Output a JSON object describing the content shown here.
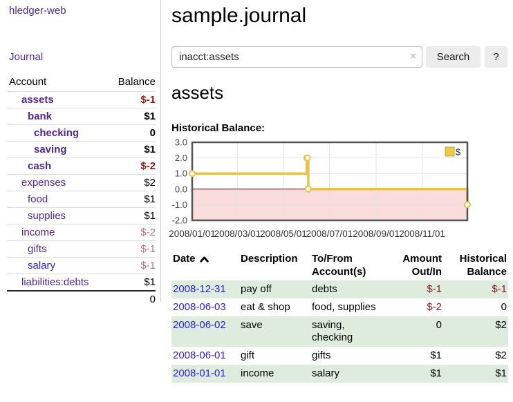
{
  "app": {
    "title": "hledger-web",
    "journal_link": "Journal"
  },
  "sidebar": {
    "columns": {
      "account": "Account",
      "balance": "Balance"
    },
    "rows": [
      {
        "name": "assets",
        "balance": "$-1",
        "depth": 1,
        "bold": true,
        "negative": true,
        "blue": false
      },
      {
        "name": "bank",
        "balance": "$1",
        "depth": 2,
        "bold": true,
        "negative": false,
        "blue": false
      },
      {
        "name": "checking",
        "balance": "0",
        "depth": 3,
        "bold": true,
        "negative": false,
        "blue": false
      },
      {
        "name": "saving",
        "balance": "$1",
        "depth": 3,
        "bold": true,
        "negative": false,
        "blue": false
      },
      {
        "name": "cash",
        "balance": "$-2",
        "depth": 2,
        "bold": true,
        "negative": true,
        "blue": false
      },
      {
        "name": "expenses",
        "balance": "$2",
        "depth": 1,
        "bold": false,
        "negative": false,
        "blue": false
      },
      {
        "name": "food",
        "balance": "$1",
        "depth": 2,
        "bold": false,
        "negative": false,
        "blue": false
      },
      {
        "name": "supplies",
        "balance": "$1",
        "depth": 2,
        "bold": false,
        "negative": false,
        "blue": false
      },
      {
        "name": "income",
        "balance": "$-2",
        "depth": 1,
        "bold": false,
        "negative": true,
        "blue": false
      },
      {
        "name": "gifts",
        "balance": "$-1",
        "depth": 2,
        "bold": false,
        "negative": true,
        "blue": false
      },
      {
        "name": "salary",
        "balance": "$-1",
        "depth": 2,
        "bold": false,
        "negative": true,
        "blue": true
      },
      {
        "name": "liabilities:debts",
        "balance": "$1",
        "depth": 1,
        "bold": false,
        "negative": false,
        "blue": false
      }
    ],
    "total": "0"
  },
  "header": {
    "title": "sample.journal"
  },
  "search": {
    "value": "inacct:assets",
    "clear_icon": "×",
    "search_button": "Search",
    "help_button": "?"
  },
  "account_page": {
    "heading": "assets",
    "chart_title": "Historical Balance:"
  },
  "chart_data": {
    "type": "line",
    "title": "Historical Balance",
    "x_range": [
      "2008-01-01",
      "2008-12-31"
    ],
    "ylim": [
      -2,
      3
    ],
    "yticks": [
      3.0,
      2.0,
      1.0,
      0.0,
      -1.0,
      -2.0
    ],
    "xticks": [
      {
        "date": "2008-01-01",
        "label": "2008/01/01"
      },
      {
        "date": "2008-03-01",
        "label": "2008/03/01"
      },
      {
        "date": "2008-05-01",
        "label": "2008/05/01"
      },
      {
        "date": "2008-07-01",
        "label": "2008/07/01"
      },
      {
        "date": "2008-09-01",
        "label": "2008/09/01"
      },
      {
        "date": "2008-11-01",
        "label": "2008/11/01"
      }
    ],
    "grid": true,
    "legend": {
      "label": "$",
      "position": "top-right"
    },
    "series": [
      {
        "name": "$",
        "step": true,
        "color": "#e8c24a",
        "points": [
          [
            "2008-01-01",
            1
          ],
          [
            "2008-06-01",
            2
          ],
          [
            "2008-06-02",
            2
          ],
          [
            "2008-06-03",
            0
          ],
          [
            "2008-12-31",
            -1
          ]
        ]
      }
    ],
    "colors": {
      "line": "#e8c24a",
      "marker_fill": "#ffffff",
      "legend_fill": "#ecc94f",
      "legend_border": "#c7a42e",
      "negative_region": "#fbdcdc",
      "zero_line": "#8b0000",
      "grid": "#e3e3e3",
      "border": "#545454",
      "axis_text": "#444444"
    }
  },
  "register": {
    "headers": [
      {
        "lines": [
          "Date"
        ],
        "sorted": "asc",
        "align": "left"
      },
      {
        "lines": [
          "Description"
        ],
        "align": "left"
      },
      {
        "lines": [
          "To/From",
          "Account(s)"
        ],
        "align": "left"
      },
      {
        "lines": [
          "Amount",
          "Out/In"
        ],
        "align": "right"
      },
      {
        "lines": [
          "Historical",
          "Balance"
        ],
        "align": "right"
      }
    ],
    "rows": [
      {
        "date": "2008-12-31",
        "description": "pay off",
        "accounts": "debts",
        "amount": "$-1",
        "balance": "$-1",
        "shaded": true
      },
      {
        "date": "2008-06-03",
        "description": "eat & shop",
        "accounts": "food, supplies",
        "amount": "$-2",
        "balance": "0",
        "shaded": false
      },
      {
        "date": "2008-06-02",
        "description": "save",
        "accounts": "saving, checking",
        "amount": "0",
        "balance": "$2",
        "shaded": true
      },
      {
        "date": "2008-06-01",
        "description": "gift",
        "accounts": "gifts",
        "amount": "$1",
        "balance": "$2",
        "shaded": false
      },
      {
        "date": "2008-01-01",
        "description": "income",
        "accounts": "salary",
        "amount": "$1",
        "balance": "$1",
        "shaded": true
      }
    ]
  }
}
